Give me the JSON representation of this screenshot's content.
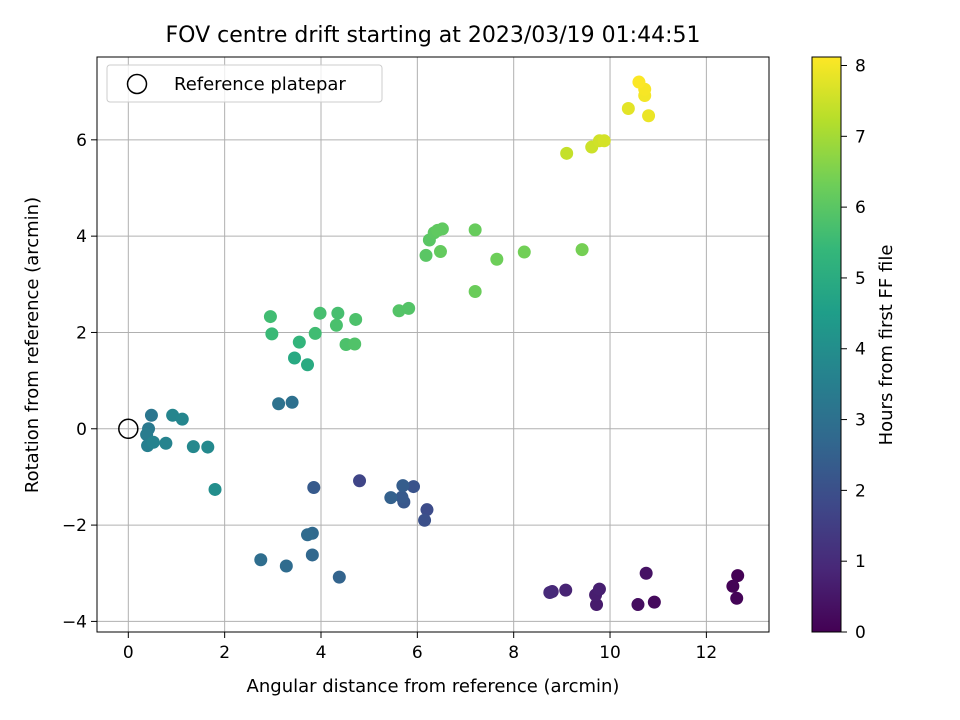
{
  "chart_data": {
    "type": "scatter",
    "title": "FOV centre drift starting at 2023/03/19 01:44:51",
    "xlabel": "Angular distance from reference (arcmin)",
    "ylabel": "Rotation from reference (arcmin)",
    "xlim": [
      -0.65,
      13.3
    ],
    "ylim": [
      -4.22,
      7.72
    ],
    "xticks": [
      0,
      2,
      4,
      6,
      8,
      10,
      12
    ],
    "yticks": [
      -4,
      -2,
      0,
      2,
      4,
      6
    ],
    "xtick_labels": [
      "0",
      "2",
      "4",
      "6",
      "8",
      "10",
      "12"
    ],
    "ytick_labels": [
      "−4",
      "−2",
      "0",
      "2",
      "4",
      "6"
    ],
    "grid": true,
    "legend": {
      "label": "Reference platepar",
      "placement": "top-left",
      "marker": "open circle"
    },
    "reference_point": {
      "x": 0,
      "y": 0
    },
    "colorbar": {
      "label": "Hours from first FF file",
      "colormap": "viridis",
      "range": [
        0,
        8.12
      ],
      "ticks": [
        0,
        1,
        2,
        3,
        4,
        5,
        6,
        7,
        8
      ],
      "tick_labels": [
        "0",
        "1",
        "2",
        "3",
        "4",
        "5",
        "6",
        "7",
        "8"
      ]
    },
    "colormap_stops": [
      "#440154",
      "#482878",
      "#3e4989",
      "#31688e",
      "#26828e",
      "#1f9e89",
      "#35b779",
      "#6ece58",
      "#b5de2b",
      "#fde725"
    ],
    "points": [
      {
        "x": 12.65,
        "y": -3.05,
        "h": 0.02
      },
      {
        "x": 12.55,
        "y": -3.27,
        "h": 0.05
      },
      {
        "x": 12.63,
        "y": -3.52,
        "h": 0.08
      },
      {
        "x": 10.92,
        "y": -3.6,
        "h": 0.2
      },
      {
        "x": 10.58,
        "y": -3.65,
        "h": 0.3
      },
      {
        "x": 10.75,
        "y": -3.0,
        "h": 0.4
      },
      {
        "x": 9.72,
        "y": -3.65,
        "h": 0.6
      },
      {
        "x": 9.7,
        "y": -3.45,
        "h": 0.65
      },
      {
        "x": 9.78,
        "y": -3.33,
        "h": 0.7
      },
      {
        "x": 9.08,
        "y": -3.35,
        "h": 0.8
      },
      {
        "x": 8.8,
        "y": -3.38,
        "h": 0.9
      },
      {
        "x": 8.75,
        "y": -3.4,
        "h": 0.95
      },
      {
        "x": 4.8,
        "y": -1.08,
        "h": 1.7
      },
      {
        "x": 6.2,
        "y": -1.68,
        "h": 1.9
      },
      {
        "x": 6.15,
        "y": -1.9,
        "h": 2.0
      },
      {
        "x": 5.92,
        "y": -1.2,
        "h": 2.1
      },
      {
        "x": 5.72,
        "y": -1.52,
        "h": 2.2
      },
      {
        "x": 5.68,
        "y": -1.42,
        "h": 2.3
      },
      {
        "x": 5.7,
        "y": -1.18,
        "h": 2.4
      },
      {
        "x": 5.45,
        "y": -1.43,
        "h": 2.5
      },
      {
        "x": 3.85,
        "y": -1.22,
        "h": 2.3
      },
      {
        "x": 4.38,
        "y": -3.08,
        "h": 2.6
      },
      {
        "x": 3.82,
        "y": -2.62,
        "h": 2.7
      },
      {
        "x": 3.82,
        "y": -2.17,
        "h": 2.75
      },
      {
        "x": 3.72,
        "y": -2.2,
        "h": 2.8
      },
      {
        "x": 3.28,
        "y": -2.85,
        "h": 2.85
      },
      {
        "x": 2.75,
        "y": -2.72,
        "h": 2.9
      },
      {
        "x": 3.4,
        "y": 0.55,
        "h": 3.0
      },
      {
        "x": 3.12,
        "y": 0.52,
        "h": 3.05
      },
      {
        "x": 0.48,
        "y": 0.28,
        "h": 3.2
      },
      {
        "x": 0.42,
        "y": 0.0,
        "h": 3.3
      },
      {
        "x": 0.38,
        "y": -0.12,
        "h": 3.4
      },
      {
        "x": 0.4,
        "y": -0.35,
        "h": 3.5
      },
      {
        "x": 0.52,
        "y": -0.28,
        "h": 3.6
      },
      {
        "x": 0.78,
        "y": -0.3,
        "h": 3.65
      },
      {
        "x": 0.92,
        "y": 0.28,
        "h": 3.7
      },
      {
        "x": 1.12,
        "y": 0.2,
        "h": 3.75
      },
      {
        "x": 1.35,
        "y": -0.37,
        "h": 3.8
      },
      {
        "x": 1.65,
        "y": -0.38,
        "h": 3.85
      },
      {
        "x": 1.8,
        "y": -1.26,
        "h": 4.0
      },
      {
        "x": 3.45,
        "y": 1.47,
        "h": 4.9
      },
      {
        "x": 3.72,
        "y": 1.33,
        "h": 4.95
      },
      {
        "x": 3.55,
        "y": 1.8,
        "h": 5.3
      },
      {
        "x": 2.95,
        "y": 2.33,
        "h": 5.6
      },
      {
        "x": 2.98,
        "y": 1.97,
        "h": 5.5
      },
      {
        "x": 3.88,
        "y": 1.98,
        "h": 5.6
      },
      {
        "x": 3.98,
        "y": 2.4,
        "h": 5.7
      },
      {
        "x": 4.32,
        "y": 2.15,
        "h": 5.75
      },
      {
        "x": 4.35,
        "y": 2.4,
        "h": 5.7
      },
      {
        "x": 4.72,
        "y": 2.27,
        "h": 5.8
      },
      {
        "x": 4.52,
        "y": 1.75,
        "h": 5.8
      },
      {
        "x": 4.7,
        "y": 1.76,
        "h": 5.85
      },
      {
        "x": 5.62,
        "y": 2.45,
        "h": 5.9
      },
      {
        "x": 5.82,
        "y": 2.5,
        "h": 5.9
      },
      {
        "x": 6.18,
        "y": 3.6,
        "h": 6.0
      },
      {
        "x": 6.25,
        "y": 3.92,
        "h": 6.0
      },
      {
        "x": 6.35,
        "y": 4.07,
        "h": 6.05
      },
      {
        "x": 6.42,
        "y": 4.12,
        "h": 6.1
      },
      {
        "x": 6.52,
        "y": 4.15,
        "h": 6.1
      },
      {
        "x": 6.48,
        "y": 3.68,
        "h": 6.15
      },
      {
        "x": 7.2,
        "y": 4.13,
        "h": 6.2
      },
      {
        "x": 7.2,
        "y": 2.85,
        "h": 6.25
      },
      {
        "x": 7.65,
        "y": 3.52,
        "h": 6.3
      },
      {
        "x": 8.22,
        "y": 3.67,
        "h": 6.35
      },
      {
        "x": 9.42,
        "y": 3.72,
        "h": 6.4
      },
      {
        "x": 9.1,
        "y": 5.72,
        "h": 7.4
      },
      {
        "x": 9.62,
        "y": 5.85,
        "h": 7.5
      },
      {
        "x": 9.78,
        "y": 5.98,
        "h": 7.55
      },
      {
        "x": 9.88,
        "y": 5.98,
        "h": 7.6
      },
      {
        "x": 10.38,
        "y": 6.65,
        "h": 7.8
      },
      {
        "x": 10.8,
        "y": 6.5,
        "h": 7.9
      },
      {
        "x": 10.72,
        "y": 6.92,
        "h": 8.0
      },
      {
        "x": 10.72,
        "y": 7.05,
        "h": 8.05
      },
      {
        "x": 10.6,
        "y": 7.2,
        "h": 8.1
      }
    ]
  }
}
